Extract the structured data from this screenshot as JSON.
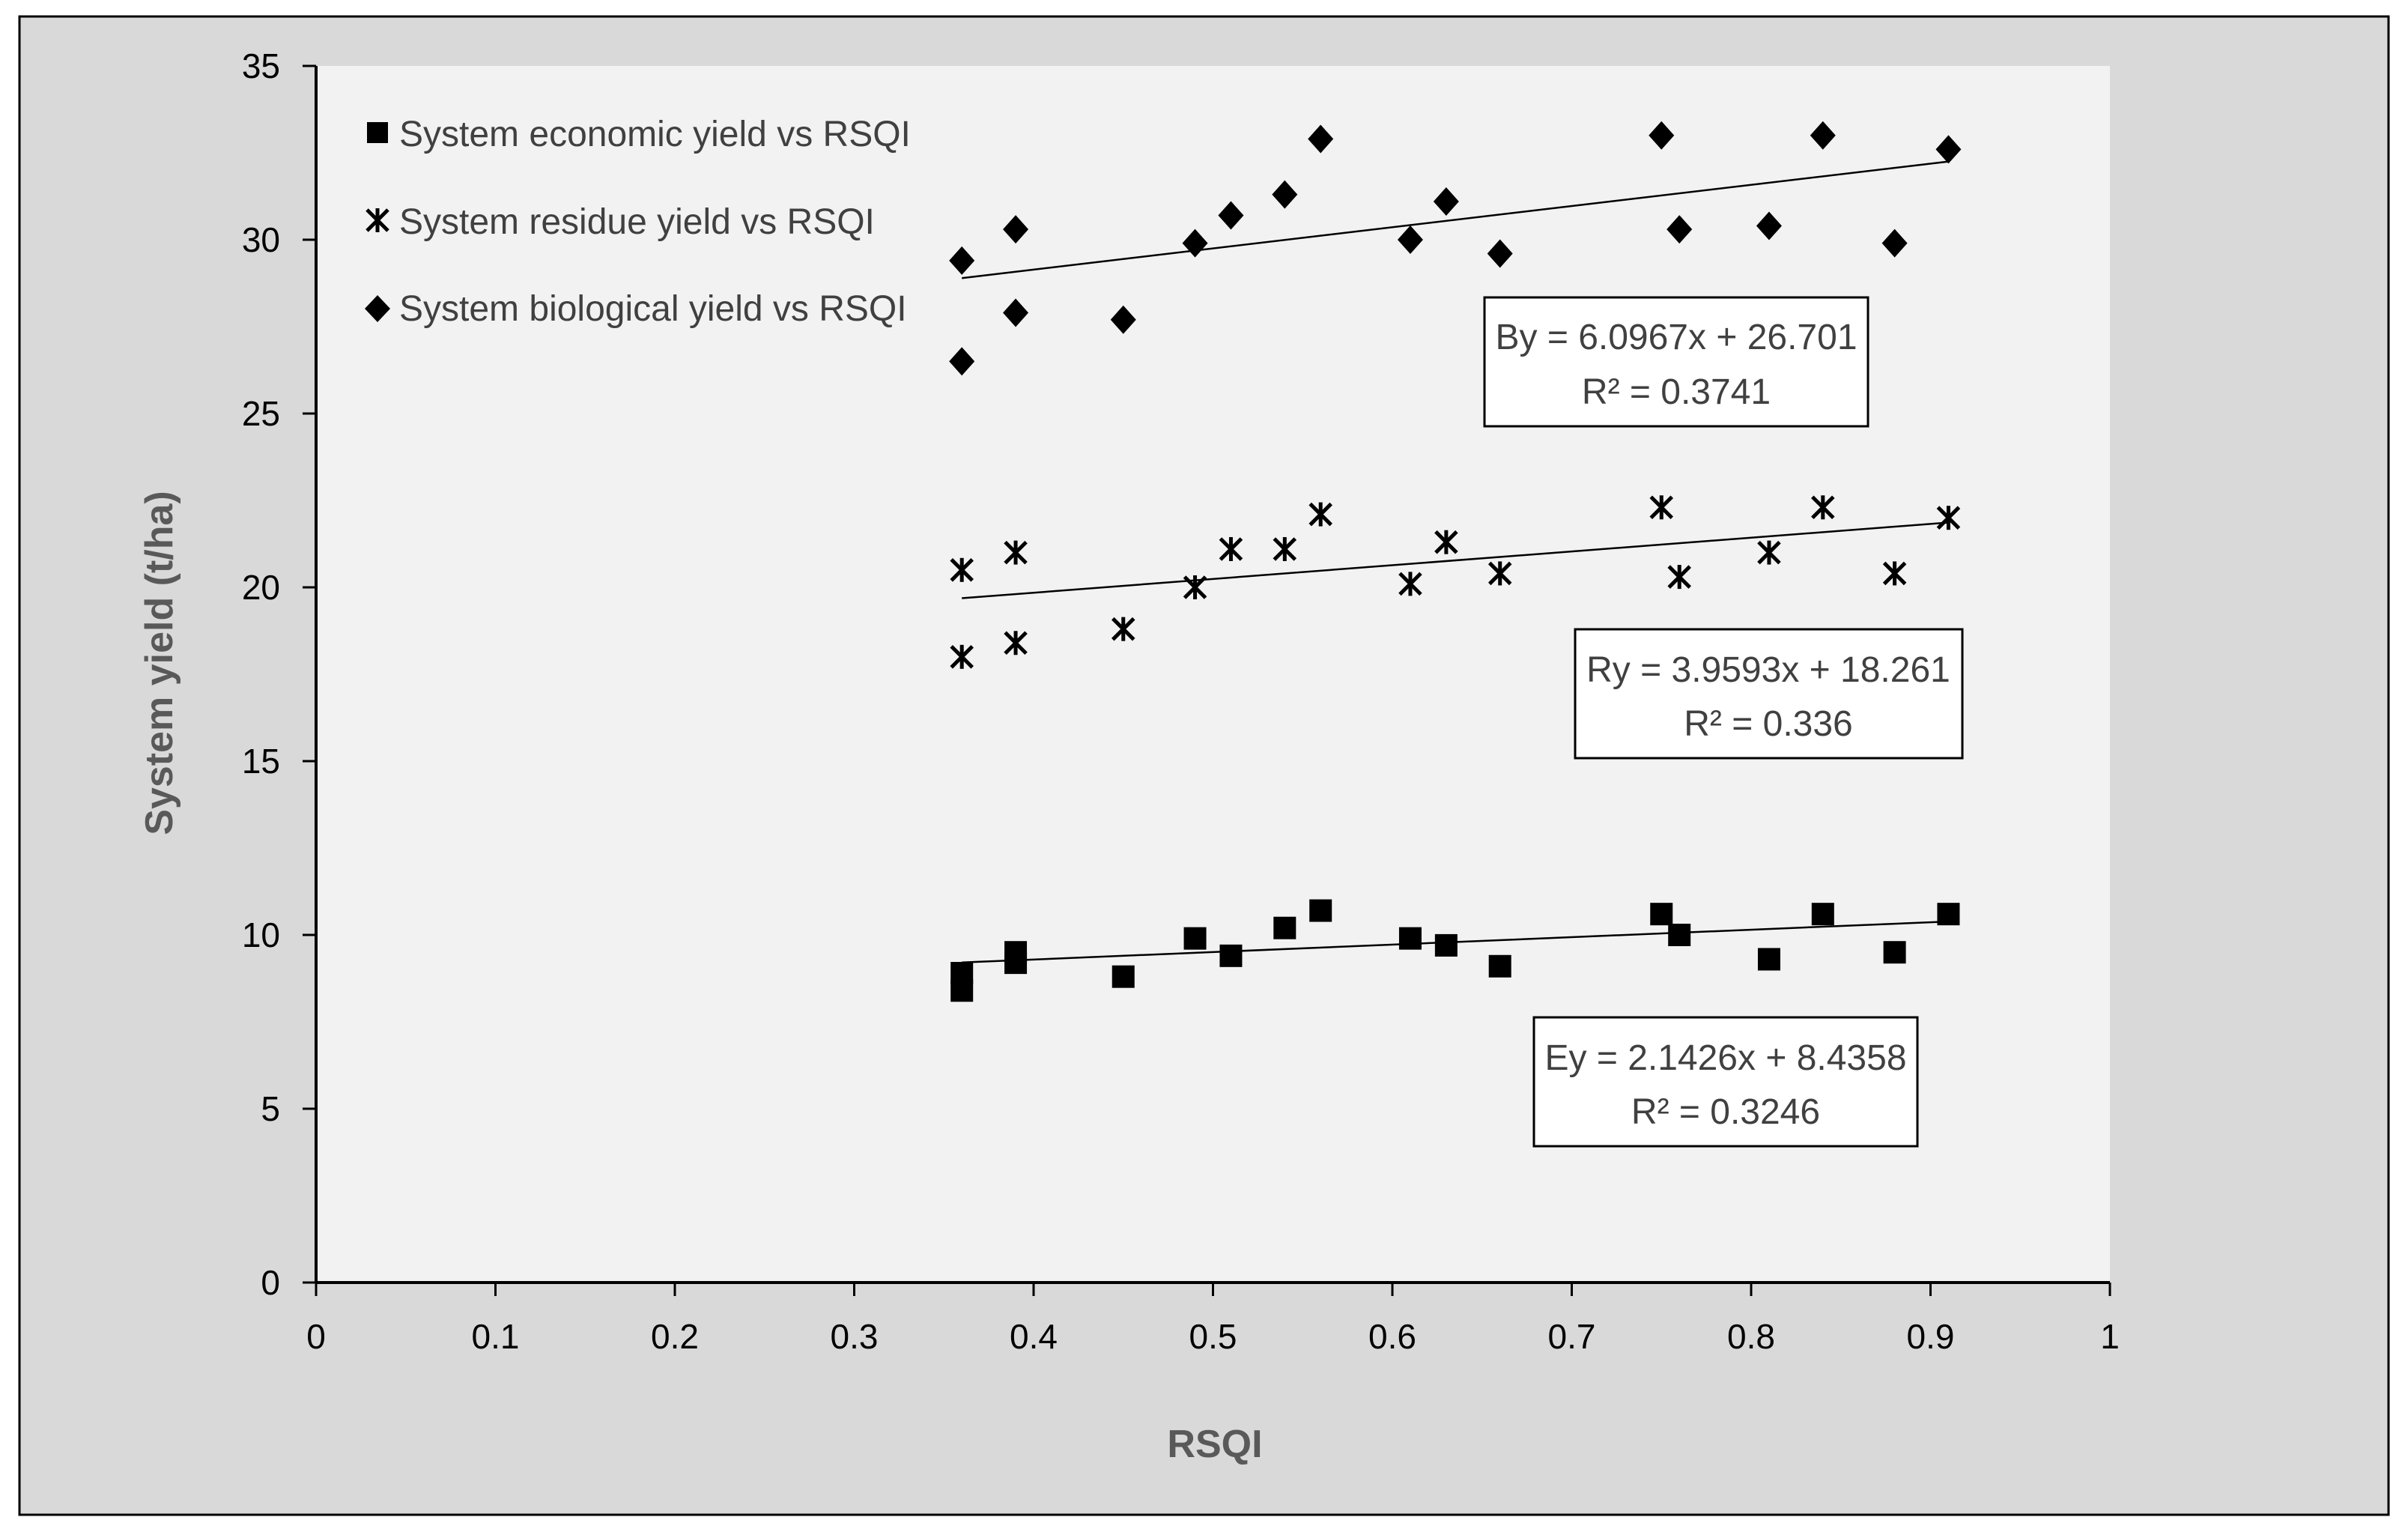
{
  "chart_data": {
    "type": "scatter",
    "title": "",
    "xlabel": "RSQI",
    "ylabel": "System yield (t/ha)",
    "xlim": [
      0,
      1
    ],
    "ylim": [
      0,
      35
    ],
    "x_ticks": [
      "0",
      "0.1",
      "0.2",
      "0.3",
      "0.4",
      "0.5",
      "0.6",
      "0.7",
      "0.8",
      "0.9",
      "1"
    ],
    "y_ticks": [
      "0",
      "5",
      "10",
      "15",
      "20",
      "25",
      "30",
      "35"
    ],
    "grid": false,
    "legend_position": "top-left",
    "series": [
      {
        "key": "economic",
        "name": "System economic yield vs RSQI",
        "marker": "square",
        "color": "#000000",
        "points": [
          [
            0.36,
            8.9
          ],
          [
            0.36,
            8.4
          ],
          [
            0.39,
            9.5
          ],
          [
            0.39,
            9.2
          ],
          [
            0.45,
            8.8
          ],
          [
            0.49,
            9.9
          ],
          [
            0.51,
            9.4
          ],
          [
            0.54,
            10.2
          ],
          [
            0.56,
            10.7
          ],
          [
            0.61,
            9.9
          ],
          [
            0.63,
            9.7
          ],
          [
            0.66,
            9.1
          ],
          [
            0.75,
            10.6
          ],
          [
            0.76,
            10.0
          ],
          [
            0.81,
            9.3
          ],
          [
            0.84,
            10.6
          ],
          [
            0.88,
            9.5
          ],
          [
            0.91,
            10.6
          ]
        ],
        "trendline": {
          "slope": 2.1426,
          "intercept": 8.4358,
          "x_range": [
            0.36,
            0.91
          ]
        },
        "equation": "Ey = 2.1426x + 8.4358",
        "r_squared": "R² = 0.3246"
      },
      {
        "key": "residue",
        "name": "System residue  yield vs RSQI",
        "marker": "asterisk",
        "color": "#000000",
        "points": [
          [
            0.36,
            20.5
          ],
          [
            0.36,
            18.0
          ],
          [
            0.39,
            21.0
          ],
          [
            0.39,
            18.4
          ],
          [
            0.45,
            18.8
          ],
          [
            0.49,
            20.0
          ],
          [
            0.51,
            21.1
          ],
          [
            0.54,
            21.1
          ],
          [
            0.56,
            22.1
          ],
          [
            0.61,
            20.1
          ],
          [
            0.63,
            21.3
          ],
          [
            0.66,
            20.4
          ],
          [
            0.75,
            22.3
          ],
          [
            0.76,
            20.3
          ],
          [
            0.81,
            21.0
          ],
          [
            0.84,
            22.3
          ],
          [
            0.88,
            20.4
          ],
          [
            0.91,
            22.0
          ]
        ],
        "trendline": {
          "slope": 3.9593,
          "intercept": 18.261,
          "x_range": [
            0.36,
            0.91
          ]
        },
        "equation": "Ry = 3.9593x + 18.261",
        "r_squared": "R² = 0.336"
      },
      {
        "key": "biological",
        "name": "System biological yield vs RSQI",
        "marker": "diamond",
        "color": "#000000",
        "points": [
          [
            0.36,
            29.4
          ],
          [
            0.36,
            26.5
          ],
          [
            0.39,
            30.3
          ],
          [
            0.39,
            27.9
          ],
          [
            0.45,
            27.7
          ],
          [
            0.49,
            29.9
          ],
          [
            0.51,
            30.7
          ],
          [
            0.54,
            31.3
          ],
          [
            0.56,
            32.9
          ],
          [
            0.61,
            30.0
          ],
          [
            0.63,
            31.1
          ],
          [
            0.66,
            29.6
          ],
          [
            0.75,
            33.0
          ],
          [
            0.76,
            30.3
          ],
          [
            0.81,
            30.4
          ],
          [
            0.84,
            33.0
          ],
          [
            0.88,
            29.9
          ],
          [
            0.91,
            32.6
          ]
        ],
        "trendline": {
          "slope": 6.0967,
          "intercept": 26.701,
          "x_range": [
            0.36,
            0.91
          ]
        },
        "equation": "By = 6.0967x + 26.701",
        "r_squared": "R² = 0.3741"
      }
    ]
  },
  "colors": {
    "outer_background": "#d9d9d9",
    "plot_background": "#f2f2f2",
    "axis": "#000000",
    "text_dark": "#404040",
    "axis_title": "#595959"
  }
}
